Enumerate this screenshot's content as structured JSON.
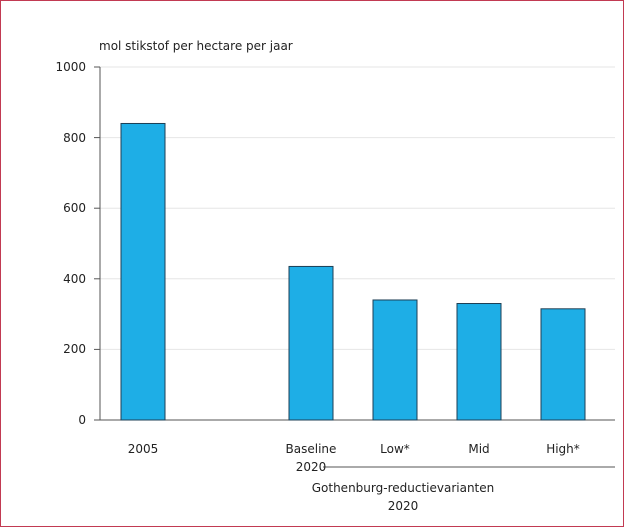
{
  "chart_data": {
    "type": "bar",
    "ylabel": "mol stikstof per hectare per jaar",
    "categories": [
      "2005",
      null,
      "Baseline\n2020",
      "Low*",
      "Mid",
      "High*"
    ],
    "values": [
      840,
      null,
      435,
      340,
      330,
      315
    ],
    "color": "#1eaee6",
    "group_label": "Gothenburg-reductievarianten\n2020",
    "ylim": [
      0,
      1000
    ],
    "yticks": [
      0,
      200,
      400,
      600,
      800,
      1000
    ],
    "grid": true
  }
}
